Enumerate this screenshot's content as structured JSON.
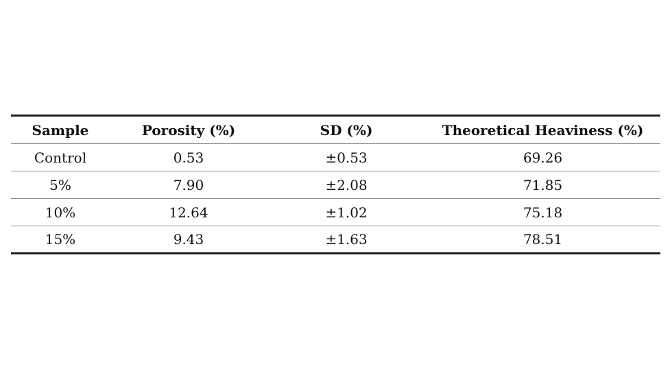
{
  "table": {
    "headers": [
      "Sample",
      "Porosity (%)",
      "SD (%)",
      "Theoretical Heaviness (%)"
    ],
    "rows": [
      {
        "cells": [
          "Control",
          "0.53",
          "±0.53",
          "69.26"
        ]
      },
      {
        "cells": [
          "5%",
          "7.90",
          "±2.08",
          "71.85"
        ]
      },
      {
        "cells": [
          "10%",
          "12.64",
          "±1.02",
          "75.18"
        ]
      },
      {
        "cells": [
          "15%",
          "9.43",
          "±1.63",
          "78.51"
        ]
      }
    ],
    "colors": {
      "text": "#111111",
      "thick_rule": "#1c1c1c",
      "thin_rule": "#8c8c8c",
      "background": "#ffffff"
    }
  }
}
